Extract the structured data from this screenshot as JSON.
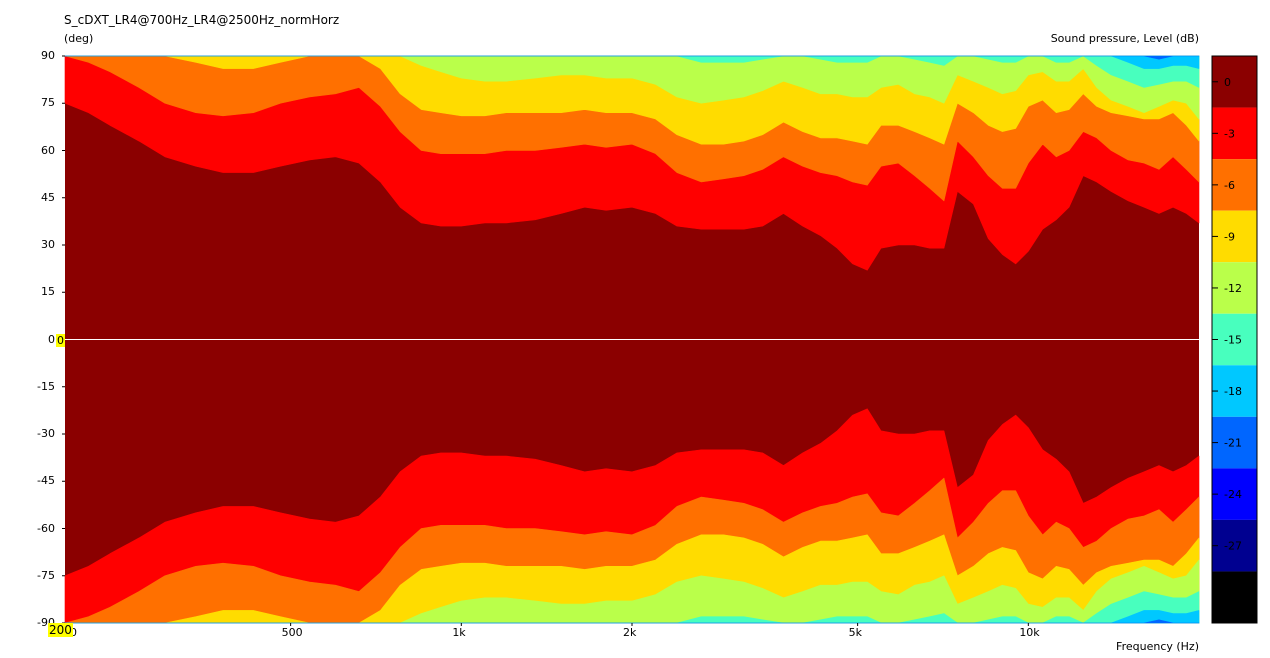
{
  "chart_data": {
    "type": "heatmap",
    "title": "S_cDXT_LR4@700Hz_LR4@2500Hz_normHorz",
    "ylabel": "(deg)",
    "xlabel": "Frequency  (Hz)",
    "colorbar_label": "Sound pressure, Level  (dB)",
    "x_scale": "log",
    "xlim": [
      200,
      20000
    ],
    "ylim": [
      -90,
      90
    ],
    "x_ticks": [
      {
        "value": 200,
        "label": "200"
      },
      {
        "value": 500,
        "label": "500"
      },
      {
        "value": 1000,
        "label": "1k"
      },
      {
        "value": 2000,
        "label": "2k"
      },
      {
        "value": 5000,
        "label": "5k"
      },
      {
        "value": 10000,
        "label": "10k"
      }
    ],
    "y_ticks": [
      "90",
      "75",
      "60",
      "45",
      "30",
      "15",
      "0",
      "-15",
      "-30",
      "-45",
      "-60",
      "-75",
      "-90"
    ],
    "y_tick_values": [
      90,
      75,
      60,
      45,
      30,
      15,
      0,
      -15,
      -30,
      -45,
      -60,
      -75,
      -90
    ],
    "cursor_x_label": "200",
    "cursor_y_label": "0",
    "levels": [
      {
        "label": "0",
        "color": "#8b0000"
      },
      {
        "label": "-3",
        "color": "#ff0000"
      },
      {
        "label": "-6",
        "color": "#ff7000"
      },
      {
        "label": "-9",
        "color": "#ffdc00"
      },
      {
        "label": "-12",
        "color": "#baff4a"
      },
      {
        "label": "-15",
        "color": "#48ffbe"
      },
      {
        "label": "-18",
        "color": "#00c8ff"
      },
      {
        "label": "-21",
        "color": "#0066ff"
      },
      {
        "label": "-24",
        "color": "#0000ff"
      },
      {
        "label": "-27",
        "color": "#000090"
      },
      {
        "label": "-30",
        "color": "#000000"
      }
    ],
    "contour_frequencies_hz": [
      200,
      220,
      240,
      270,
      300,
      340,
      380,
      430,
      480,
      540,
      600,
      660,
      720,
      780,
      850,
      920,
      1000,
      1100,
      1200,
      1350,
      1500,
      1650,
      1800,
      2000,
      2200,
      2400,
      2650,
      2900,
      3150,
      3400,
      3700,
      4000,
      4300,
      4600,
      4900,
      5200,
      5500,
      5900,
      6300,
      6700,
      7100,
      7500,
      8000,
      8500,
      9000,
      9500,
      10000,
      10600,
      11200,
      11800,
      12500,
      13200,
      14000,
      15000,
      16000,
      17000,
      18000,
      19000,
      20000
    ],
    "contour_edges_deg": [
      [
        75,
        72,
        68,
        63,
        58,
        55,
        53,
        53,
        55,
        57,
        58,
        56,
        50,
        42,
        37,
        36,
        36,
        37,
        37,
        38,
        40,
        42,
        41,
        42,
        40,
        36,
        35,
        35,
        35,
        36,
        40,
        36,
        33,
        29,
        24,
        22,
        29,
        30,
        30,
        29,
        29,
        47,
        43,
        32,
        27,
        24,
        28,
        35,
        38,
        42,
        52,
        50,
        47,
        44,
        42,
        40,
        42,
        40,
        37
      ],
      [
        90,
        88,
        85,
        80,
        75,
        72,
        71,
        72,
        75,
        77,
        78,
        80,
        74,
        66,
        60,
        59,
        59,
        59,
        60,
        60,
        61,
        62,
        61,
        62,
        59,
        53,
        50,
        51,
        52,
        54,
        58,
        55,
        53,
        52,
        50,
        49,
        55,
        56,
        52,
        48,
        44,
        63,
        58,
        52,
        48,
        48,
        56,
        62,
        58,
        60,
        66,
        64,
        60,
        57,
        56,
        54,
        58,
        54,
        50
      ],
      [
        null,
        null,
        null,
        null,
        90,
        88,
        86,
        86,
        88,
        90,
        90,
        90,
        86,
        78,
        73,
        72,
        71,
        71,
        72,
        72,
        72,
        73,
        72,
        72,
        70,
        65,
        62,
        62,
        63,
        65,
        69,
        66,
        64,
        64,
        63,
        62,
        68,
        68,
        66,
        64,
        62,
        75,
        72,
        68,
        66,
        67,
        74,
        76,
        72,
        73,
        78,
        74,
        72,
        71,
        70,
        70,
        72,
        68,
        63
      ],
      [
        null,
        null,
        null,
        null,
        null,
        null,
        null,
        null,
        null,
        null,
        null,
        null,
        null,
        90,
        87,
        85,
        83,
        82,
        82,
        83,
        84,
        84,
        83,
        83,
        81,
        77,
        75,
        76,
        77,
        79,
        82,
        80,
        78,
        78,
        77,
        77,
        80,
        81,
        78,
        77,
        75,
        84,
        82,
        80,
        78,
        79,
        84,
        85,
        82,
        82,
        86,
        80,
        76,
        74,
        72,
        74,
        76,
        75,
        70
      ],
      [
        null,
        null,
        null,
        null,
        null,
        null,
        null,
        null,
        null,
        null,
        null,
        null,
        null,
        null,
        null,
        null,
        null,
        null,
        null,
        null,
        null,
        null,
        null,
        null,
        null,
        90,
        88,
        88,
        88,
        89,
        90,
        90,
        89,
        88,
        88,
        88,
        90,
        90,
        89,
        88,
        87,
        90,
        90,
        89,
        88,
        88,
        90,
        90,
        88,
        88,
        90,
        87,
        84,
        82,
        80,
        81,
        82,
        82,
        80
      ],
      [
        null,
        null,
        null,
        null,
        null,
        null,
        null,
        null,
        null,
        null,
        null,
        null,
        null,
        null,
        null,
        null,
        null,
        null,
        null,
        null,
        null,
        null,
        null,
        null,
        null,
        null,
        null,
        null,
        null,
        null,
        null,
        null,
        null,
        null,
        null,
        null,
        null,
        null,
        null,
        null,
        null,
        null,
        null,
        null,
        null,
        null,
        null,
        null,
        null,
        null,
        null,
        null,
        90,
        88,
        86,
        86,
        87,
        87,
        86
      ],
      [
        null,
        null,
        null,
        null,
        null,
        null,
        null,
        null,
        null,
        null,
        null,
        null,
        null,
        null,
        null,
        null,
        null,
        null,
        null,
        null,
        null,
        null,
        null,
        null,
        null,
        null,
        null,
        null,
        null,
        null,
        null,
        null,
        null,
        null,
        null,
        null,
        null,
        null,
        null,
        null,
        null,
        null,
        null,
        null,
        null,
        null,
        null,
        null,
        null,
        null,
        null,
        null,
        null,
        null,
        90,
        89,
        90,
        90,
        90
      ]
    ]
  }
}
